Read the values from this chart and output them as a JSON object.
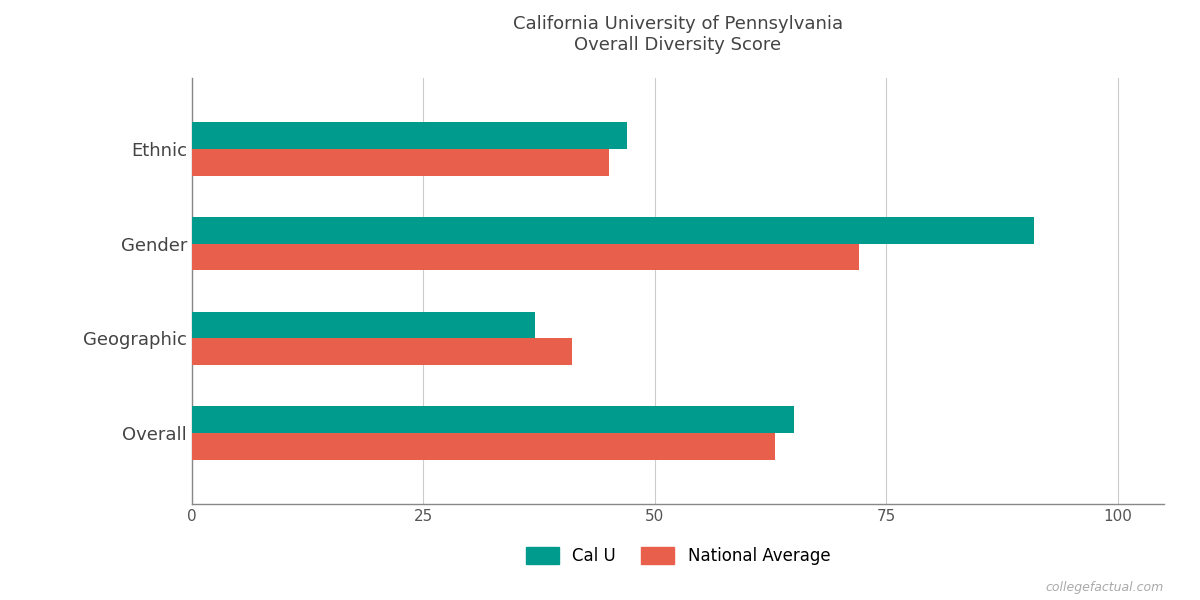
{
  "title_line1": "California University of Pennsylvania",
  "title_line2": "Overall Diversity Score",
  "categories": [
    "Overall",
    "Geographic",
    "Gender",
    "Ethnic"
  ],
  "cal_u_values": [
    65,
    37,
    91,
    47
  ],
  "national_avg_values": [
    63,
    41,
    72,
    45
  ],
  "cal_u_color": "#009B8D",
  "national_avg_color": "#E8604C",
  "xlim": [
    0,
    105
  ],
  "xticks": [
    0,
    25,
    50,
    75,
    100
  ],
  "bar_height": 0.28,
  "legend_cal_u": "Cal U",
  "legend_national_avg": "National Average",
  "background_color": "#ffffff",
  "watermark": "collegefactual.com",
  "title_fontsize": 13,
  "axis_label_fontsize": 13,
  "tick_fontsize": 11,
  "legend_fontsize": 12
}
